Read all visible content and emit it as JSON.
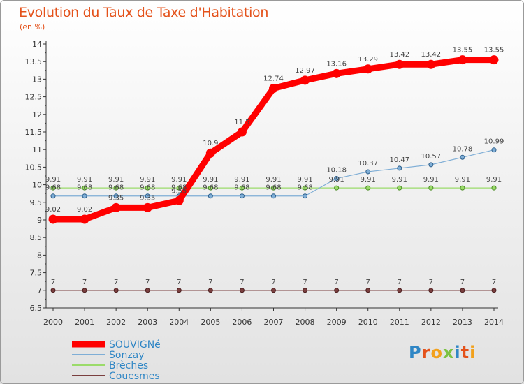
{
  "chart_data": {
    "type": "line",
    "title": "Evolution du Taux de Taxe d'Habitation",
    "subtitle": "(en %)",
    "x": [
      "2000",
      "2001",
      "2002",
      "2003",
      "2004",
      "2005",
      "2006",
      "2007",
      "2008",
      "2009",
      "2010",
      "2011",
      "2012",
      "2013",
      "2014"
    ],
    "ylim": [
      6.5,
      14
    ],
    "yticks": [
      "6.5",
      "7",
      "7.5",
      "8",
      "8.5",
      "9",
      "9.5",
      "10",
      "10.5",
      "11",
      "11.5",
      "12",
      "12.5",
      "13",
      "13.5",
      "14"
    ],
    "grid": false,
    "legend_position": "bottom-left",
    "series": [
      {
        "name": "SOUVIGNé",
        "color": "#ff0000",
        "values": [
          9.02,
          9.02,
          9.35,
          9.35,
          9.55,
          10.9,
          11.5,
          12.74,
          12.97,
          13.16,
          13.29,
          13.42,
          13.42,
          13.55,
          13.55
        ],
        "labels": [
          "9.02",
          "9.02",
          "9.35",
          "9.35",
          "9.55",
          "10.9",
          "11.5",
          "12.74",
          "12.97",
          "13.16",
          "13.29",
          "13.42",
          "13.42",
          "13.55",
          "13.55"
        ]
      },
      {
        "name": "Sonzay",
        "color": "#7faed6",
        "values": [
          9.68,
          9.68,
          9.68,
          9.68,
          9.68,
          9.68,
          9.68,
          9.68,
          9.68,
          10.18,
          10.37,
          10.47,
          10.57,
          10.78,
          10.99
        ],
        "labels": [
          "9.68",
          "9.68",
          "9.68",
          "9.68",
          "9.68",
          "9.68",
          "9.68",
          "9.68",
          "9.68",
          "10.18",
          "10.37",
          "10.47",
          "10.57",
          "10.78",
          "10.99"
        ]
      },
      {
        "name": "Brèches",
        "color": "#9bdb6a",
        "values": [
          9.91,
          9.91,
          9.91,
          9.91,
          9.91,
          9.91,
          9.91,
          9.91,
          9.91,
          9.91,
          9.91,
          9.91,
          9.91,
          9.91,
          9.91
        ],
        "labels": [
          "9.91",
          "9.91",
          "9.91",
          "9.91",
          "9.91",
          "9.91",
          "9.91",
          "9.91",
          "9.91",
          "9.91",
          "9.91",
          "9.91",
          "9.91",
          "9.91",
          "9.91"
        ]
      },
      {
        "name": "Couesmes",
        "color": "#7a3f3f",
        "values": [
          7,
          7,
          7,
          7,
          7,
          7,
          7,
          7,
          7,
          7,
          7,
          7,
          7,
          7,
          7
        ],
        "labels": [
          "7",
          "7",
          "7",
          "7",
          "7",
          "7",
          "7",
          "7",
          "7",
          "7",
          "7",
          "7",
          "7",
          "7",
          "7"
        ]
      }
    ]
  },
  "logo_text": "Proxiti"
}
